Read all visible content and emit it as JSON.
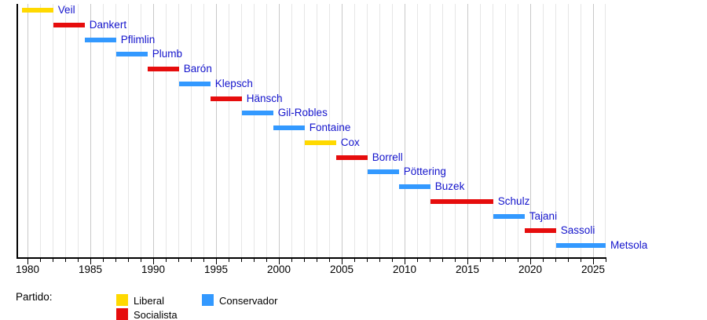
{
  "chart_data": {
    "type": "bar",
    "subtype": "timeline-gantt",
    "title": "",
    "xlabel": "",
    "ylabel": "",
    "x_axis": {
      "range": [
        1979.2,
        2026
      ],
      "major_ticks": [
        1980,
        1985,
        1990,
        1995,
        2000,
        2005,
        2010,
        2015,
        2020,
        2025
      ],
      "minor_tick_step": 1,
      "grid": "yearly vertical, darker every 5 years",
      "legend_position": "bottom"
    },
    "label_color": "#1414cc",
    "axis_color": "#000000",
    "grid_minor_color": "#e6e6e6",
    "grid_major_color": "#c9c9c9",
    "parties": {
      "Liberal": "#ffd900",
      "Socialista": "#e60d0d",
      "Conservador": "#3399ff"
    },
    "bars": [
      {
        "name": "Veil",
        "party": "Liberal",
        "start": 1979.55,
        "end": 1982.05
      },
      {
        "name": "Dankert",
        "party": "Socialista",
        "start": 1982.05,
        "end": 1984.55
      },
      {
        "name": "Pflimlin",
        "party": "Conservador",
        "start": 1984.55,
        "end": 1987.05
      },
      {
        "name": "Plumb",
        "party": "Conservador",
        "start": 1987.05,
        "end": 1989.55
      },
      {
        "name": "Barón",
        "party": "Socialista",
        "start": 1989.55,
        "end": 1992.05
      },
      {
        "name": "Klepsch",
        "party": "Conservador",
        "start": 1992.05,
        "end": 1994.55
      },
      {
        "name": "Hänsch",
        "party": "Socialista",
        "start": 1994.55,
        "end": 1997.05
      },
      {
        "name": "Gil-Robles",
        "party": "Conservador",
        "start": 1997.05,
        "end": 1999.55
      },
      {
        "name": "Fontaine",
        "party": "Conservador",
        "start": 1999.55,
        "end": 2002.05
      },
      {
        "name": "Cox",
        "party": "Liberal",
        "start": 2002.05,
        "end": 2004.55
      },
      {
        "name": "Borrell",
        "party": "Socialista",
        "start": 2004.55,
        "end": 2007.05
      },
      {
        "name": "Pöttering",
        "party": "Conservador",
        "start": 2007.05,
        "end": 2009.55
      },
      {
        "name": "Buzek",
        "party": "Conservador",
        "start": 2009.55,
        "end": 2012.05
      },
      {
        "name": "Schulz",
        "party": "Socialista",
        "start": 2012.05,
        "end": 2017.05
      },
      {
        "name": "Tajani",
        "party": "Conservador",
        "start": 2017.05,
        "end": 2019.55
      },
      {
        "name": "Sassoli",
        "party": "Socialista",
        "start": 2019.55,
        "end": 2022.05
      },
      {
        "name": "Metsola",
        "party": "Conservador",
        "start": 2022.05,
        "end": 2026.0
      }
    ]
  },
  "legend": {
    "title": "Partido:",
    "items": [
      {
        "label": "Liberal",
        "party": "Liberal"
      },
      {
        "label": "Socialista",
        "party": "Socialista"
      },
      {
        "label": "Conservador",
        "party": "Conservador"
      }
    ]
  }
}
